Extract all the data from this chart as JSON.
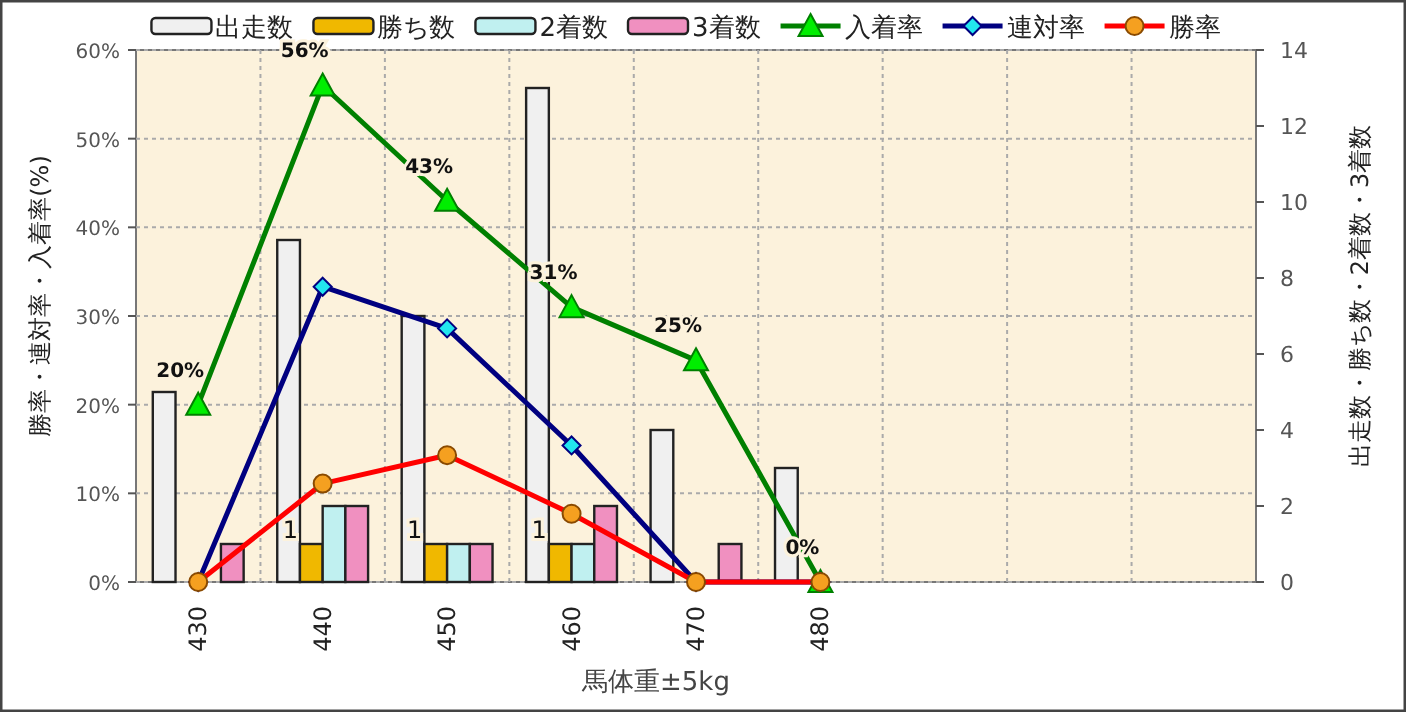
{
  "chart_data": {
    "type": "bar",
    "xlabel": "馬体重±5kg",
    "ylabel": "勝率・連対率・入着率(%)",
    "y2label": "出走数・勝ち数・2着数・3着数",
    "categories": [
      "430",
      "440",
      "450",
      "460",
      "470",
      "480",
      null,
      null,
      null
    ],
    "series": [
      {
        "name": "出走数",
        "axis": "y2",
        "color": "#f0f0f0",
        "values": [
          5,
          9,
          7,
          13,
          4,
          3,
          null,
          null,
          null
        ]
      },
      {
        "name": "勝ち数",
        "axis": "y2",
        "color": "#f0b800",
        "values": [
          0,
          1,
          1,
          1,
          0,
          0,
          null,
          null,
          null
        ],
        "value_labels": [
          null,
          "1",
          "1",
          "1",
          null,
          null,
          null,
          null,
          null
        ]
      },
      {
        "name": "2着数",
        "axis": "y2",
        "color": "#c0f0f0",
        "values": [
          0,
          2,
          1,
          1,
          0,
          0,
          null,
          null,
          null
        ]
      },
      {
        "name": "3着数",
        "axis": "y2",
        "color": "#f090c0",
        "values": [
          1,
          2,
          1,
          2,
          1,
          0,
          null,
          null,
          null
        ]
      },
      {
        "name": "入着率",
        "type": "line",
        "axis": "y",
        "color": "#008000",
        "marker": "triangle",
        "values": [
          20,
          56,
          43,
          31,
          25,
          0,
          null,
          null,
          null
        ],
        "value_labels": [
          "20%",
          "56%",
          "43%",
          "31%",
          "25%",
          "0%",
          null,
          null,
          null
        ]
      },
      {
        "name": "連対率",
        "type": "line",
        "axis": "y",
        "color": "#000080",
        "marker": "diamond",
        "values": [
          0,
          33.3,
          28.6,
          15.4,
          0,
          0,
          null,
          null,
          null
        ]
      },
      {
        "name": "勝率",
        "type": "line",
        "axis": "y",
        "color": "#ff0000",
        "marker": "circle",
        "values": [
          0,
          11.1,
          14.3,
          7.7,
          0,
          0,
          null,
          null,
          null
        ]
      }
    ],
    "ylim": [
      0,
      60
    ],
    "yticks": [
      {
        "value": 0,
        "label": "0%"
      },
      {
        "value": 10,
        "label": "10%"
      },
      {
        "value": 20,
        "label": "20%"
      },
      {
        "value": 30,
        "label": "30%"
      },
      {
        "value": 40,
        "label": "40%"
      },
      {
        "value": 50,
        "label": "50%"
      },
      {
        "value": 60,
        "label": "60%"
      }
    ],
    "y2lim": [
      0,
      14
    ],
    "y2ticks": [
      0,
      2,
      4,
      6,
      8,
      10,
      12,
      14
    ],
    "grid": true,
    "legend": "top"
  }
}
